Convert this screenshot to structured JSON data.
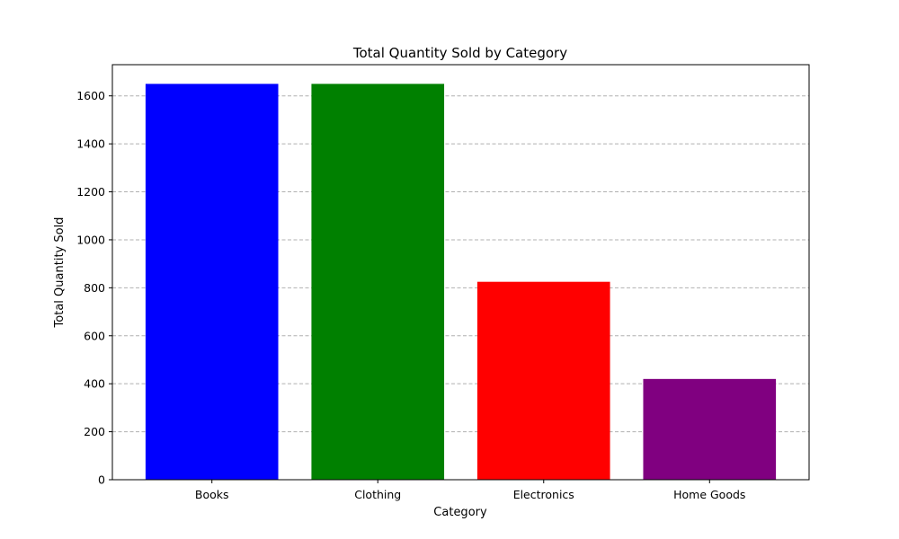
{
  "chart_data": {
    "type": "bar",
    "title": "Total Quantity Sold by Category",
    "xlabel": "Category",
    "ylabel": "Total Quantity Sold",
    "categories": [
      "Books",
      "Clothing",
      "Electronics",
      "Home Goods"
    ],
    "values": [
      1650,
      1650,
      825,
      420
    ],
    "colors": [
      "#0000ff",
      "#008000",
      "#ff0000",
      "#800080"
    ],
    "ylim": [
      0,
      1730
    ],
    "yticks": [
      0,
      200,
      400,
      600,
      800,
      1000,
      1200,
      1400,
      1600
    ],
    "grid": "y-axis dashed",
    "legend": "none"
  }
}
